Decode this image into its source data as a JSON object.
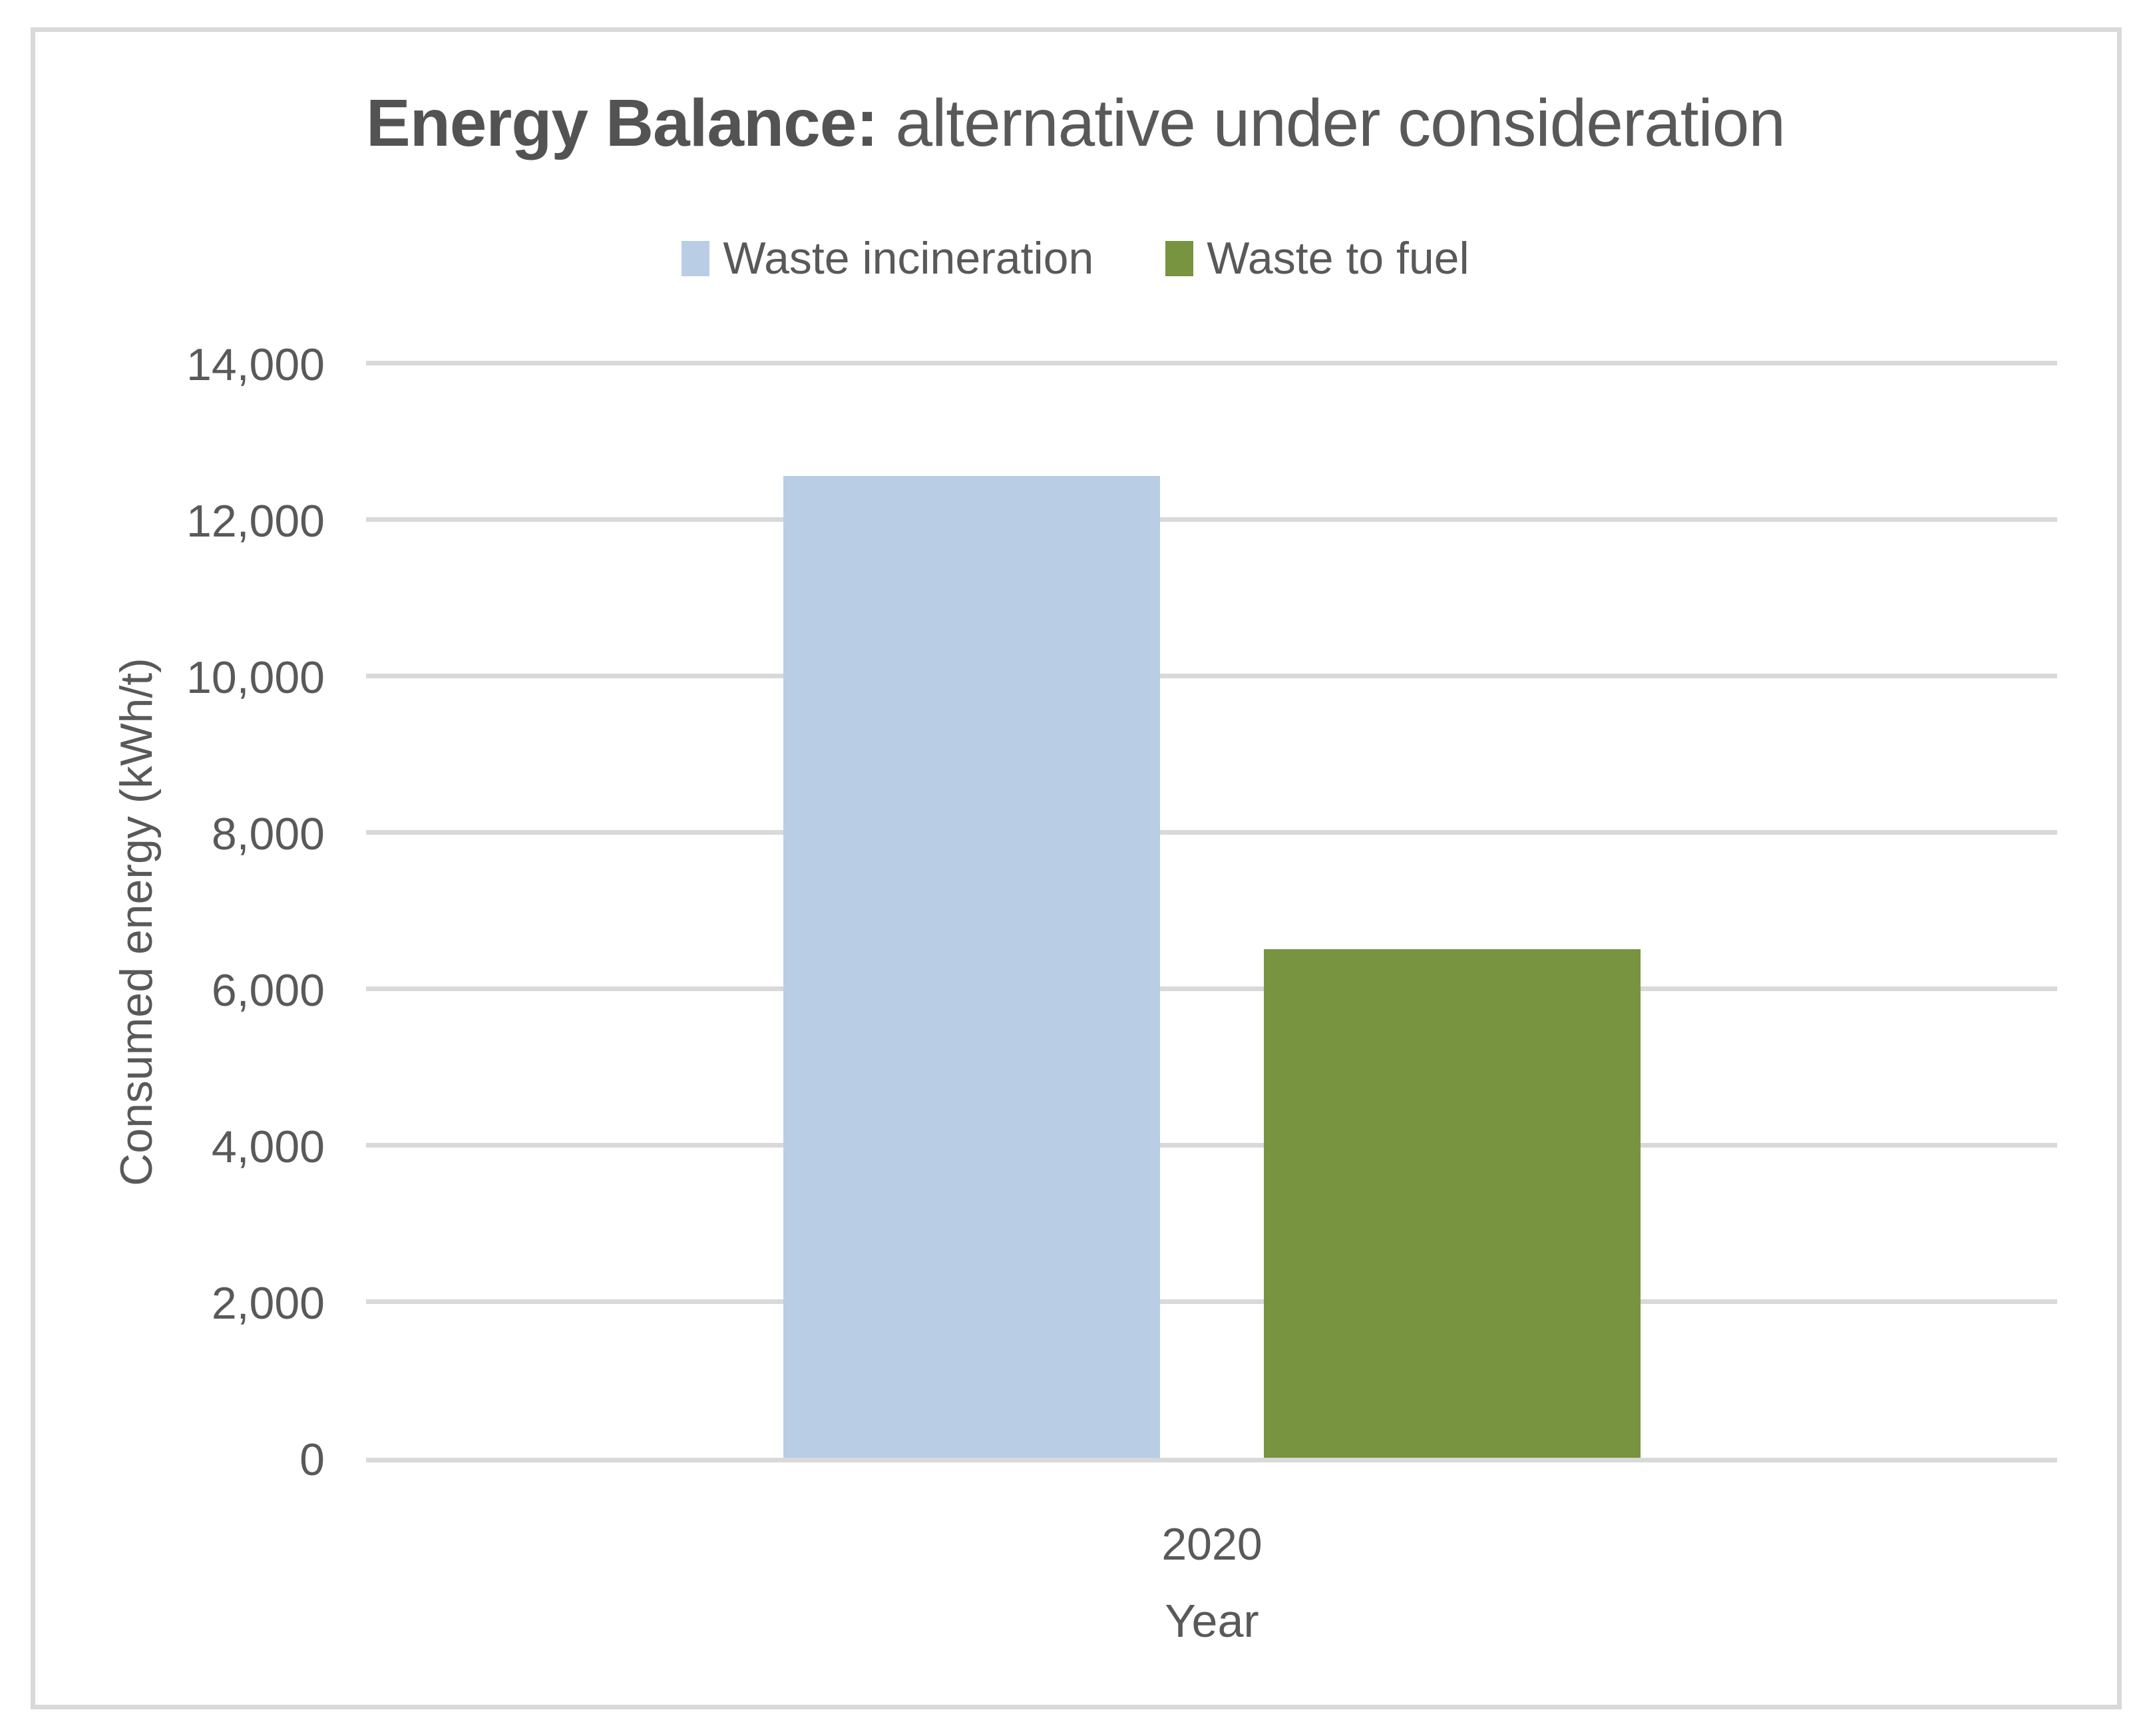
{
  "chart_data": {
    "type": "bar",
    "title": {
      "bold": "Energy Balance:",
      "regular": " alternative under consideration"
    },
    "categories": [
      "2020"
    ],
    "series": [
      {
        "name": "Waste incineration",
        "values": [
          12550
        ],
        "color": "#B9CDE5"
      },
      {
        "name": "Waste to fuel",
        "values": [
          6500
        ],
        "color": "#789440"
      }
    ],
    "xlabel": "Year",
    "ylabel": "Consumed energy (kWh/t)",
    "ylim": [
      0,
      14000
    ],
    "ytick_step": 2000,
    "yticks": [
      {
        "value": 0,
        "label": "0"
      },
      {
        "value": 2000,
        "label": "2,000"
      },
      {
        "value": 4000,
        "label": "4,000"
      },
      {
        "value": 6000,
        "label": "6,000"
      },
      {
        "value": 8000,
        "label": "8,000"
      },
      {
        "value": 10000,
        "label": "10,000"
      },
      {
        "value": 12000,
        "label": "12,000"
      },
      {
        "value": 14000,
        "label": "14,000"
      }
    ],
    "grid": true,
    "legend_position": "top",
    "colors": {
      "gridline": "#D9D9D9",
      "frame_border": "#D9D9D9",
      "text": "#595959"
    }
  }
}
